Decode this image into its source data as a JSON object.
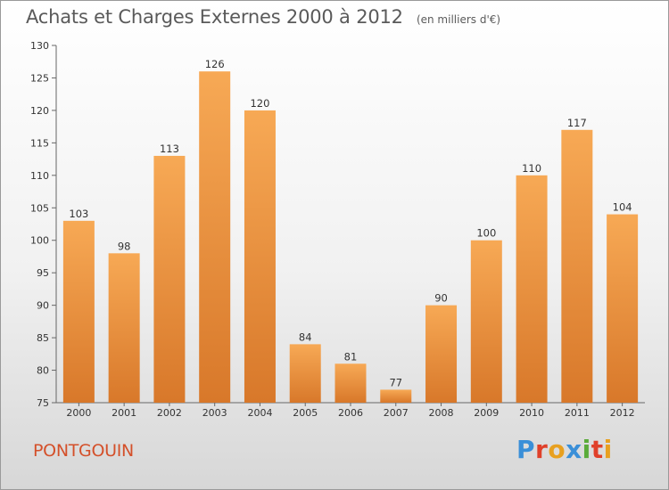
{
  "header": {
    "title": "Achats et Charges Externes 2000 à 2012",
    "unit": "(en milliers d'€)"
  },
  "footer": {
    "commune": "PONTGOUIN",
    "brand": "Proxiti",
    "brand_letters": [
      {
        "char": "P",
        "color": "#3a8fd8"
      },
      {
        "char": "r",
        "color": "#e0402a"
      },
      {
        "char": "o",
        "color": "#e8a020"
      },
      {
        "char": "x",
        "color": "#3a8fd8"
      },
      {
        "char": "i",
        "color": "#5aab3a"
      },
      {
        "char": "t",
        "color": "#e0402a"
      },
      {
        "char": "i",
        "color": "#e8a020"
      }
    ]
  },
  "colors": {
    "bar_light": "#f7a955",
    "bar_dark": "#d8782a",
    "accent": "#d4502a"
  },
  "chart_data": {
    "type": "bar",
    "title": "Achats et Charges Externes 2000 à 2012",
    "subtitle": "(en milliers d'€)",
    "categories": [
      "2000",
      "2001",
      "2002",
      "2003",
      "2004",
      "2005",
      "2006",
      "2007",
      "2008",
      "2009",
      "2010",
      "2011",
      "2012"
    ],
    "values": [
      103,
      98,
      113,
      126,
      120,
      84,
      81,
      77,
      90,
      100,
      110,
      117,
      104
    ],
    "ylim": [
      75,
      130
    ],
    "yticks": [
      75,
      80,
      85,
      90,
      95,
      100,
      105,
      110,
      115,
      120,
      125,
      130
    ],
    "grid": false,
    "legend": "none"
  }
}
